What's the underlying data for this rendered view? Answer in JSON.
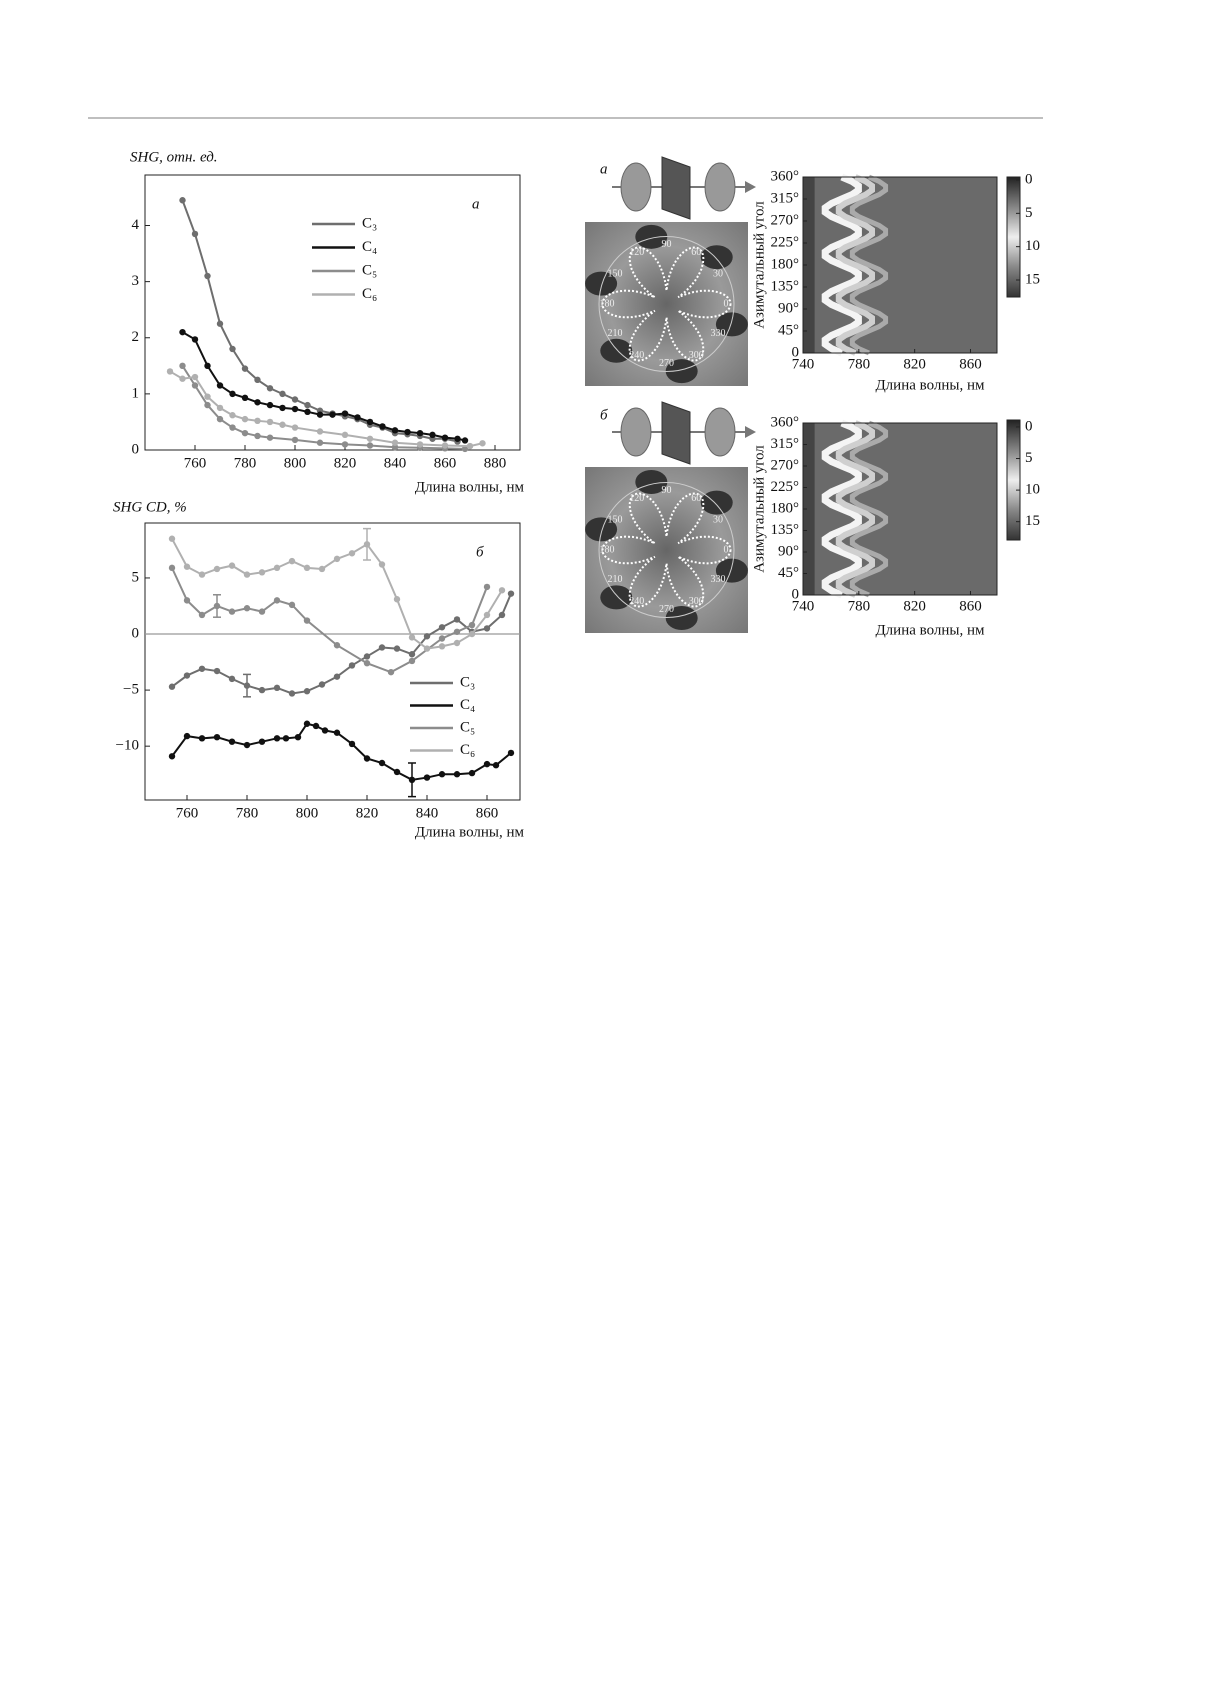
{
  "chart_data": [
    {
      "type": "line",
      "title": "SHG, отн. ед.",
      "x_label": "Длина волны, нм",
      "annotation": "a",
      "xlim": [
        740,
        890
      ],
      "ylim": [
        0,
        4.9
      ],
      "xticks": [
        760,
        780,
        800,
        820,
        840,
        860,
        880
      ],
      "yticks": [
        0,
        1,
        2,
        3,
        4
      ],
      "series": [
        {
          "name": "C₃",
          "color": "#6e6e6e",
          "x": [
            755,
            760,
            765,
            770,
            775,
            780,
            785,
            790,
            795,
            800,
            805,
            810,
            815,
            820,
            825,
            830,
            835,
            840,
            845,
            850,
            855,
            860,
            865
          ],
          "values": [
            4.45,
            3.85,
            3.1,
            2.25,
            1.8,
            1.45,
            1.25,
            1.1,
            1.0,
            0.9,
            0.8,
            0.7,
            0.65,
            0.6,
            0.55,
            0.45,
            0.4,
            0.3,
            0.28,
            0.25,
            0.2,
            0.2,
            0.15
          ]
        },
        {
          "name": "C₄",
          "color": "#111111",
          "x": [
            755,
            760,
            765,
            770,
            775,
            780,
            785,
            790,
            795,
            800,
            805,
            810,
            815,
            820,
            825,
            830,
            835,
            840,
            845,
            850,
            855,
            860,
            865,
            868
          ],
          "values": [
            2.1,
            1.97,
            1.5,
            1.15,
            1.0,
            0.93,
            0.85,
            0.8,
            0.75,
            0.73,
            0.68,
            0.63,
            0.63,
            0.65,
            0.58,
            0.5,
            0.42,
            0.35,
            0.32,
            0.3,
            0.27,
            0.22,
            0.2,
            0.17
          ]
        },
        {
          "name": "C₅",
          "color": "#8c8c8c",
          "x": [
            755,
            760,
            765,
            770,
            775,
            780,
            785,
            790,
            800,
            810,
            820,
            830,
            840,
            850,
            860,
            868
          ],
          "values": [
            1.5,
            1.15,
            0.8,
            0.55,
            0.4,
            0.3,
            0.25,
            0.22,
            0.18,
            0.13,
            0.1,
            0.08,
            0.05,
            0.04,
            0.03,
            0.02
          ]
        },
        {
          "name": "C₆",
          "color": "#b0b0b0",
          "x": [
            750,
            755,
            760,
            765,
            770,
            775,
            780,
            785,
            790,
            795,
            800,
            810,
            820,
            830,
            840,
            850,
            860,
            870,
            875
          ],
          "values": [
            1.4,
            1.27,
            1.3,
            0.95,
            0.75,
            0.62,
            0.55,
            0.52,
            0.5,
            0.45,
            0.4,
            0.33,
            0.27,
            0.2,
            0.13,
            0.1,
            0.08,
            0.07,
            0.12
          ]
        }
      ]
    },
    {
      "type": "line",
      "title": "SHG CD, %",
      "x_label": "Длина волны, нм",
      "annotation": "б",
      "reference_line": 0,
      "xlim": [
        746,
        871
      ],
      "ylim": [
        -14.8,
        9.9
      ],
      "xticks": [
        760,
        780,
        800,
        820,
        840,
        860
      ],
      "yticks": [
        {
          "value": -10,
          "label": "−10"
        },
        {
          "value": -5,
          "label": "−5"
        },
        0,
        5
      ],
      "series": [
        {
          "name": "C₃",
          "color": "#6e6e6e",
          "x": [
            755,
            760,
            765,
            770,
            775,
            780,
            785,
            790,
            795,
            800,
            805,
            810,
            815,
            820,
            825,
            830,
            835,
            840,
            845,
            850,
            855,
            860,
            865,
            868
          ],
          "values": [
            -4.7,
            -3.7,
            -3.1,
            -3.3,
            -4.0,
            -4.6,
            -5.0,
            -4.8,
            -5.3,
            -5.1,
            -4.5,
            -3.8,
            -2.8,
            -2.0,
            -1.2,
            -1.3,
            -1.8,
            -0.2,
            0.6,
            1.3,
            0.2,
            0.5,
            1.7,
            3.6
          ],
          "errors": [
            null,
            null,
            null,
            null,
            null,
            1.0,
            null,
            null,
            null,
            null,
            null,
            null,
            null,
            null,
            null,
            null,
            null,
            null,
            null,
            null,
            null,
            null,
            null,
            null
          ]
        },
        {
          "name": "C₄",
          "color": "#111111",
          "x": [
            755,
            760,
            765,
            770,
            775,
            780,
            785,
            790,
            793,
            797,
            800,
            803,
            806,
            810,
            815,
            820,
            825,
            830,
            835,
            840,
            845,
            850,
            855,
            860,
            863,
            868
          ],
          "values": [
            -10.9,
            -9.1,
            -9.3,
            -9.2,
            -9.6,
            -9.9,
            -9.6,
            -9.3,
            -9.3,
            -9.2,
            -8.0,
            -8.2,
            -8.6,
            -8.8,
            -9.8,
            -11.1,
            -11.5,
            -12.3,
            -13.0,
            -12.8,
            -12.5,
            -12.5,
            -12.4,
            -11.6,
            -11.7,
            -10.6
          ],
          "errors": [
            null,
            null,
            null,
            null,
            null,
            null,
            null,
            null,
            null,
            null,
            null,
            null,
            null,
            null,
            null,
            null,
            null,
            null,
            1.5,
            null,
            null,
            null,
            null,
            null,
            null,
            null
          ]
        },
        {
          "name": "C₅",
          "color": "#8c8c8c",
          "x": [
            755,
            760,
            765,
            770,
            775,
            780,
            785,
            790,
            795,
            800,
            810,
            820,
            828,
            835,
            845,
            850,
            855,
            860
          ],
          "values": [
            5.9,
            3.0,
            1.7,
            2.5,
            2.0,
            2.3,
            2.0,
            3.0,
            2.6,
            1.2,
            -1.0,
            -2.6,
            -3.4,
            -2.4,
            -0.4,
            0.2,
            0.8,
            4.2
          ],
          "errors": [
            null,
            null,
            null,
            1.0,
            null,
            null,
            null,
            null,
            null,
            null,
            null,
            null,
            null,
            null,
            null,
            null,
            null,
            null
          ]
        },
        {
          "name": "C₆",
          "color": "#b0b0b0",
          "x": [
            755,
            760,
            765,
            770,
            775,
            780,
            785,
            790,
            795,
            800,
            805,
            810,
            815,
            820,
            825,
            830,
            835,
            840,
            845,
            850,
            855,
            860,
            865
          ],
          "values": [
            8.5,
            6.0,
            5.3,
            5.8,
            6.1,
            5.3,
            5.5,
            5.9,
            6.5,
            5.9,
            5.8,
            6.7,
            7.2,
            8.0,
            6.2,
            3.1,
            -0.3,
            -1.3,
            -1.1,
            -0.8,
            0.0,
            1.7,
            3.9
          ],
          "errors": [
            null,
            null,
            null,
            null,
            null,
            null,
            null,
            null,
            null,
            null,
            null,
            null,
            null,
            1.4,
            null,
            null,
            null,
            null,
            null,
            null,
            null,
            null,
            null
          ]
        }
      ]
    },
    {
      "type": "heatmap",
      "annotation": "a",
      "x_label": "Длина волны, нм",
      "y_label": "Азимутальный угол",
      "xlim": [
        740,
        879
      ],
      "ylim": [
        0,
        360
      ],
      "xticks": [
        740,
        780,
        820,
        860
      ],
      "yticks": [
        0,
        {
          "value": 45,
          "label": "45°"
        },
        {
          "value": 90,
          "label": "90°"
        },
        {
          "value": 135,
          "label": "135°"
        },
        {
          "value": 180,
          "label": "180°"
        },
        {
          "value": 225,
          "label": "225°"
        },
        {
          "value": 270,
          "label": "270°"
        },
        {
          "value": 315,
          "label": "315°"
        },
        {
          "value": 360,
          "label": "360°"
        }
      ],
      "clim": [
        -0.45,
        17.55
      ],
      "cticks": [
        0,
        5,
        10,
        15
      ],
      "polar_labels": [
        90,
        60,
        30,
        0,
        330,
        300,
        270,
        240,
        210,
        180,
        150,
        120
      ]
    },
    {
      "type": "heatmap",
      "annotation": "б",
      "x_label": "Длина волны, нм",
      "y_label": "Азимутальный угол",
      "xlim": [
        740,
        879
      ],
      "ylim": [
        0,
        360
      ],
      "xticks": [
        740,
        780,
        820,
        860
      ],
      "yticks": [
        0,
        {
          "value": 45,
          "label": "45°"
        },
        {
          "value": 90,
          "label": "90°"
        },
        {
          "value": 135,
          "label": "135°"
        },
        {
          "value": 180,
          "label": "180°"
        },
        {
          "value": 225,
          "label": "225°"
        },
        {
          "value": 270,
          "label": "270°"
        },
        {
          "value": 315,
          "label": "315°"
        },
        {
          "value": 360,
          "label": "360°"
        }
      ],
      "clim": [
        -1.1,
        17.9
      ],
      "cticks": [
        0,
        5,
        10,
        15
      ],
      "polar_labels": [
        90,
        60,
        30,
        0,
        330,
        300,
        270,
        240,
        210,
        180,
        150,
        120
      ]
    }
  ]
}
